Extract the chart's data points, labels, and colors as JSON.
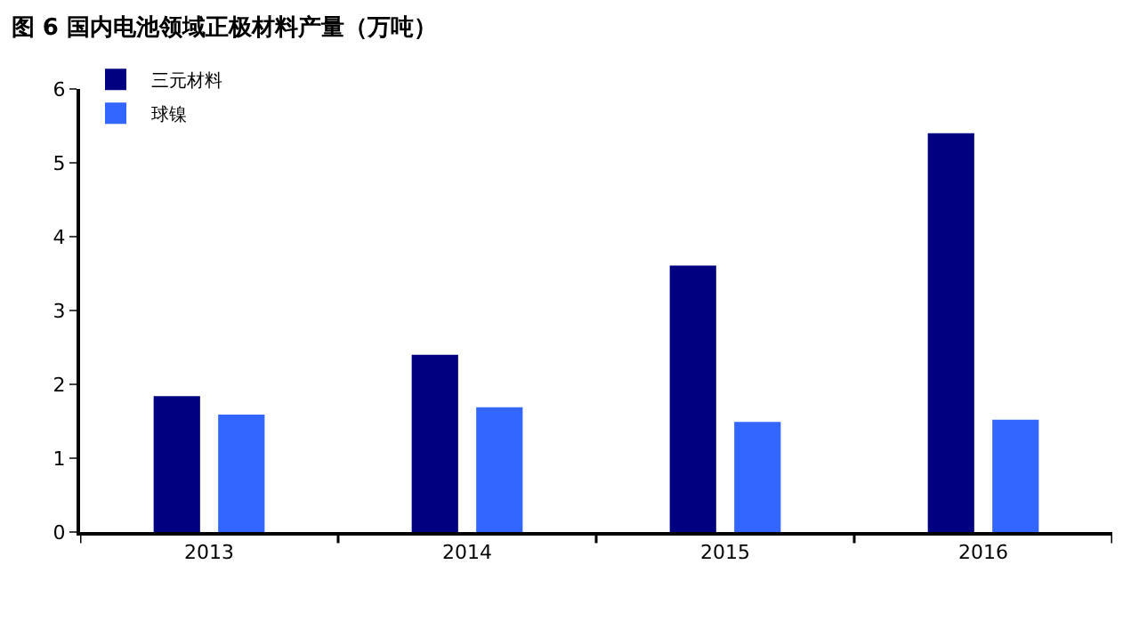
{
  "chart_data": {
    "type": "bar",
    "title": "图 6 国内电池领域正极材料产量（万吨）",
    "categories": [
      "2013",
      "2014",
      "2015",
      "2016"
    ],
    "series": [
      {
        "name": "三元材料",
        "color": "#000080",
        "values": [
          1.84,
          2.4,
          3.61,
          5.4
        ]
      },
      {
        "name": "球镍",
        "color": "#3366ff",
        "values": [
          1.59,
          1.69,
          1.49,
          1.52
        ]
      }
    ],
    "ylim": [
      0,
      6
    ],
    "yticks": [
      0,
      1,
      2,
      3,
      4,
      5,
      6
    ],
    "legend": "top left"
  }
}
